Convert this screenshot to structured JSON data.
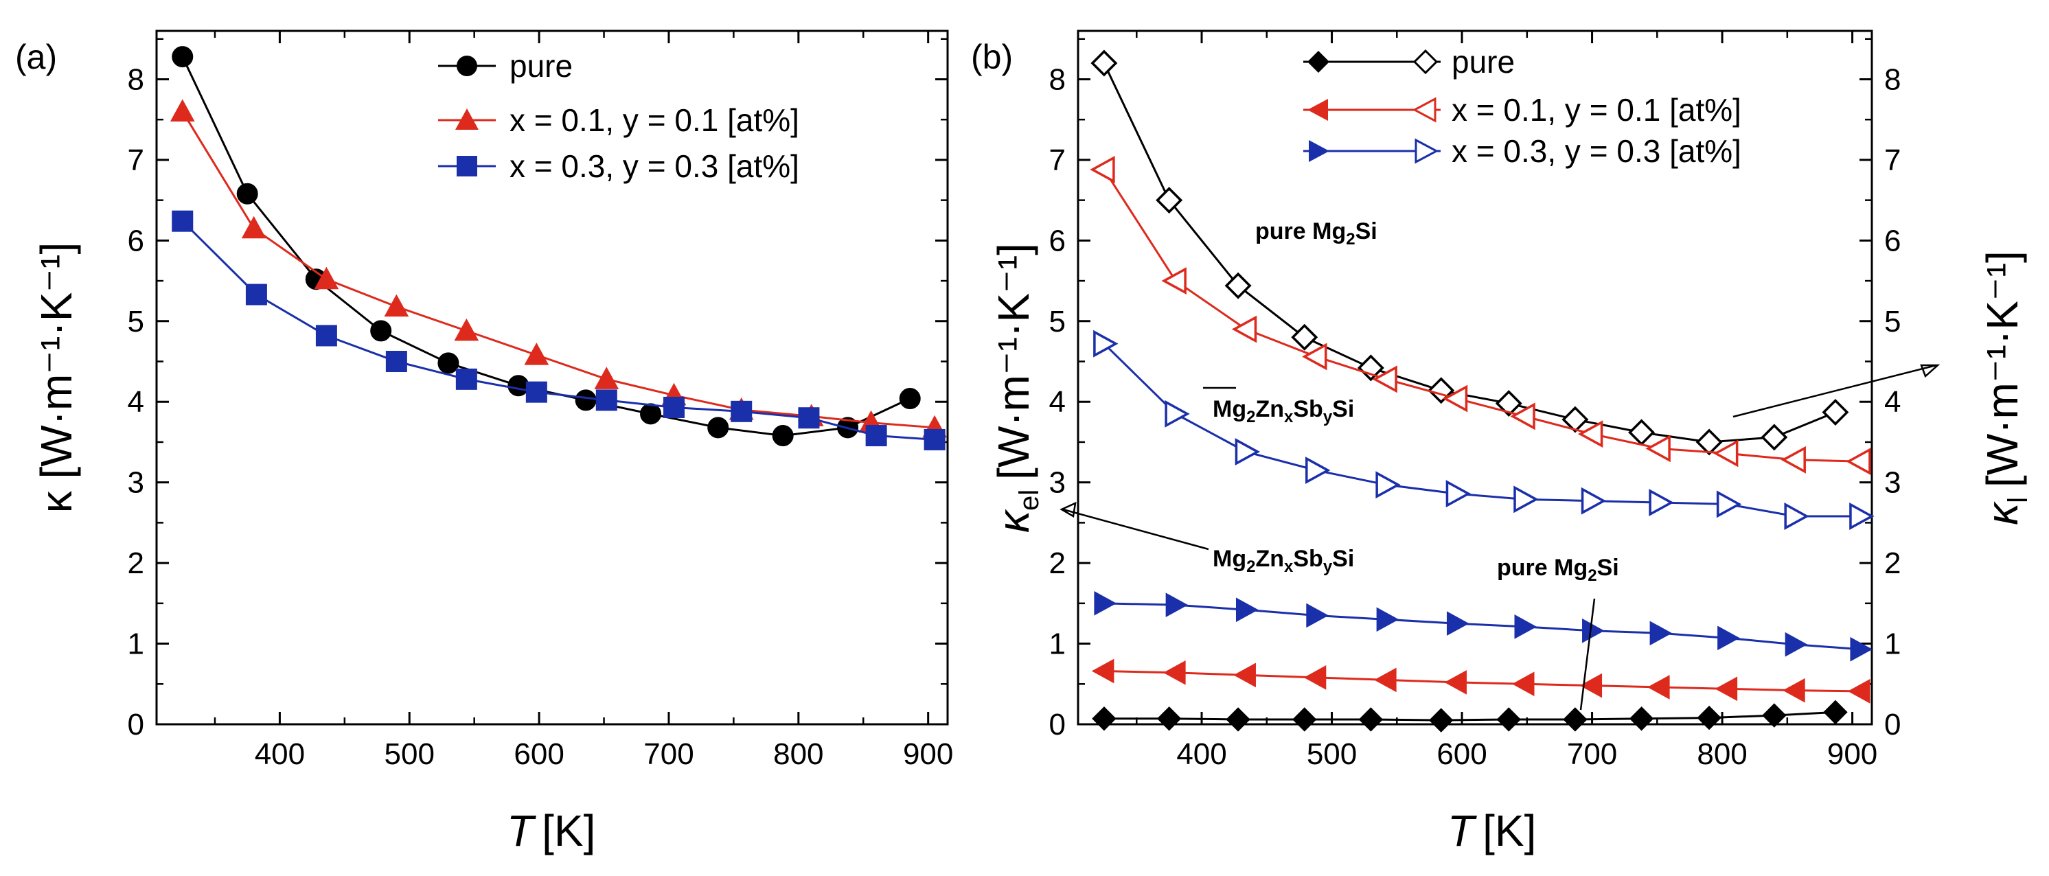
{
  "colors": {
    "black": "#000000",
    "red": "#dd2a1d",
    "blue": "#1a2faa"
  },
  "chart_data": [
    {
      "type": "line",
      "panel_label": "(a)",
      "xlabel_symbol": "T",
      "xlabel_unit": "[K]",
      "ylabel": "κ [W·m⁻¹·K⁻¹]",
      "xlim": [
        305,
        915
      ],
      "ylim": [
        0,
        8.6
      ],
      "x_ticks": [
        400,
        500,
        600,
        700,
        800,
        900
      ],
      "y_ticks": [
        0,
        1,
        2,
        3,
        4,
        5,
        6,
        7,
        8
      ],
      "legend_position": "top-right",
      "series": [
        {
          "name": "pure",
          "color": "black",
          "marker": "circle",
          "filled": true,
          "x": [
            325,
            375,
            428,
            478,
            530,
            584,
            636,
            686,
            738,
            788,
            838,
            886
          ],
          "values": [
            8.28,
            6.58,
            5.52,
            4.88,
            4.48,
            4.2,
            4.02,
            3.85,
            3.68,
            3.58,
            3.68,
            4.04
          ]
        },
        {
          "name": "x = 0.1, y = 0.1 [at%]",
          "color": "red",
          "marker": "triangle-up",
          "filled": true,
          "x": [
            325,
            380,
            436,
            490,
            544,
            598,
            652,
            704,
            756,
            810,
            856,
            905
          ],
          "values": [
            7.6,
            6.15,
            5.52,
            5.18,
            4.88,
            4.58,
            4.28,
            4.08,
            3.9,
            3.82,
            3.74,
            3.68
          ]
        },
        {
          "name": "x = 0.3, y = 0.3 [at%]",
          "color": "blue",
          "marker": "square",
          "filled": true,
          "x": [
            325,
            382,
            436,
            490,
            544,
            598,
            652,
            704,
            756,
            808,
            860,
            905
          ],
          "values": [
            6.24,
            5.33,
            4.82,
            4.5,
            4.28,
            4.12,
            4.02,
            3.93,
            3.88,
            3.8,
            3.58,
            3.53
          ]
        }
      ]
    },
    {
      "type": "line",
      "panel_label": "(b)",
      "xlabel_symbol": "T",
      "xlabel_unit": "[K]",
      "ylabel_left_symbol": "κ",
      "ylabel_left_sub": "el",
      "ylabel_right_symbol": "κ",
      "ylabel_right_sub": "l",
      "ylabel_units": "[W·m⁻¹·K⁻¹]",
      "xlim": [
        305,
        915
      ],
      "ylim": [
        0,
        8.6
      ],
      "x_ticks": [
        400,
        500,
        600,
        700,
        800,
        900
      ],
      "y_ticks": [
        0,
        1,
        2,
        3,
        4,
        5,
        6,
        7,
        8
      ],
      "legend_position": "top-right",
      "legend": [
        {
          "name": "pure",
          "color": "black",
          "marker_filled": "diamond",
          "marker_open": "diamond"
        },
        {
          "name": "x = 0.1, y = 0.1 [at%]",
          "color": "red",
          "marker_filled": "triangle-left",
          "marker_open": "triangle-left"
        },
        {
          "name": "x = 0.3, y = 0.3 [at%]",
          "color": "blue",
          "marker_filled": "triangle-right",
          "marker_open": "triangle-right"
        }
      ],
      "series": [
        {
          "name": "pure κl",
          "axis": "right",
          "color": "black",
          "marker": "diamond",
          "filled": false,
          "x": [
            325,
            375,
            428,
            479,
            530,
            584,
            636,
            687,
            738,
            790,
            840,
            887
          ],
          "values": [
            8.2,
            6.5,
            5.44,
            4.8,
            4.42,
            4.14,
            3.98,
            3.78,
            3.62,
            3.5,
            3.56,
            3.87
          ]
        },
        {
          "name": "x = 0.1, y = 0.1 κl",
          "axis": "right",
          "color": "red",
          "marker": "triangle-left",
          "filled": false,
          "x": [
            325,
            380,
            434,
            488,
            542,
            596,
            648,
            700,
            752,
            804,
            856,
            906
          ],
          "values": [
            6.88,
            5.5,
            4.9,
            4.56,
            4.28,
            4.04,
            3.82,
            3.6,
            3.42,
            3.36,
            3.28,
            3.26
          ]
        },
        {
          "name": "x = 0.3, y = 0.3 κl",
          "axis": "right",
          "color": "blue",
          "marker": "triangle-right",
          "filled": false,
          "x": [
            325,
            380,
            434,
            488,
            542,
            596,
            648,
            700,
            752,
            804,
            856,
            906
          ],
          "values": [
            4.72,
            3.85,
            3.38,
            3.15,
            2.97,
            2.86,
            2.79,
            2.77,
            2.75,
            2.73,
            2.58,
            2.58
          ]
        },
        {
          "name": "pure κel",
          "axis": "left",
          "color": "black",
          "marker": "diamond",
          "filled": true,
          "x": [
            325,
            375,
            428,
            479,
            530,
            584,
            636,
            687,
            738,
            790,
            840,
            887
          ],
          "values": [
            0.07,
            0.07,
            0.06,
            0.06,
            0.06,
            0.05,
            0.06,
            0.06,
            0.07,
            0.08,
            0.11,
            0.15
          ]
        },
        {
          "name": "x = 0.1, y = 0.1 κel",
          "axis": "left",
          "color": "red",
          "marker": "triangle-left",
          "filled": true,
          "x": [
            325,
            380,
            434,
            488,
            542,
            596,
            648,
            700,
            752,
            804,
            856,
            906
          ],
          "values": [
            0.66,
            0.64,
            0.61,
            0.58,
            0.55,
            0.52,
            0.5,
            0.48,
            0.46,
            0.44,
            0.42,
            0.41
          ]
        },
        {
          "name": "x = 0.3, y = 0.3 κel",
          "axis": "left",
          "color": "blue",
          "marker": "triangle-right",
          "filled": true,
          "x": [
            325,
            380,
            434,
            488,
            542,
            596,
            648,
            700,
            752,
            804,
            856,
            906
          ],
          "values": [
            1.5,
            1.48,
            1.42,
            1.35,
            1.3,
            1.25,
            1.21,
            1.16,
            1.13,
            1.07,
            0.99,
            0.93
          ]
        }
      ],
      "annotations": {
        "pure_upper": {
          "main": "pure Mg",
          "sub": "2",
          "tail": "Si"
        },
        "mgzn_upper": {
          "p1": "Mg",
          "s1": "2",
          "p2": "Zn",
          "s2": "x",
          "p3": "Sb",
          "s3": "y",
          "p4": "Si"
        },
        "mgzn_lower": {
          "p1": "Mg",
          "s1": "2",
          "p2": "Zn",
          "s2": "x",
          "p3": "Sb",
          "s3": "y",
          "p4": "Si"
        },
        "pure_lower": {
          "main": "pure Mg",
          "sub": "2",
          "tail": "Si"
        }
      }
    }
  ]
}
